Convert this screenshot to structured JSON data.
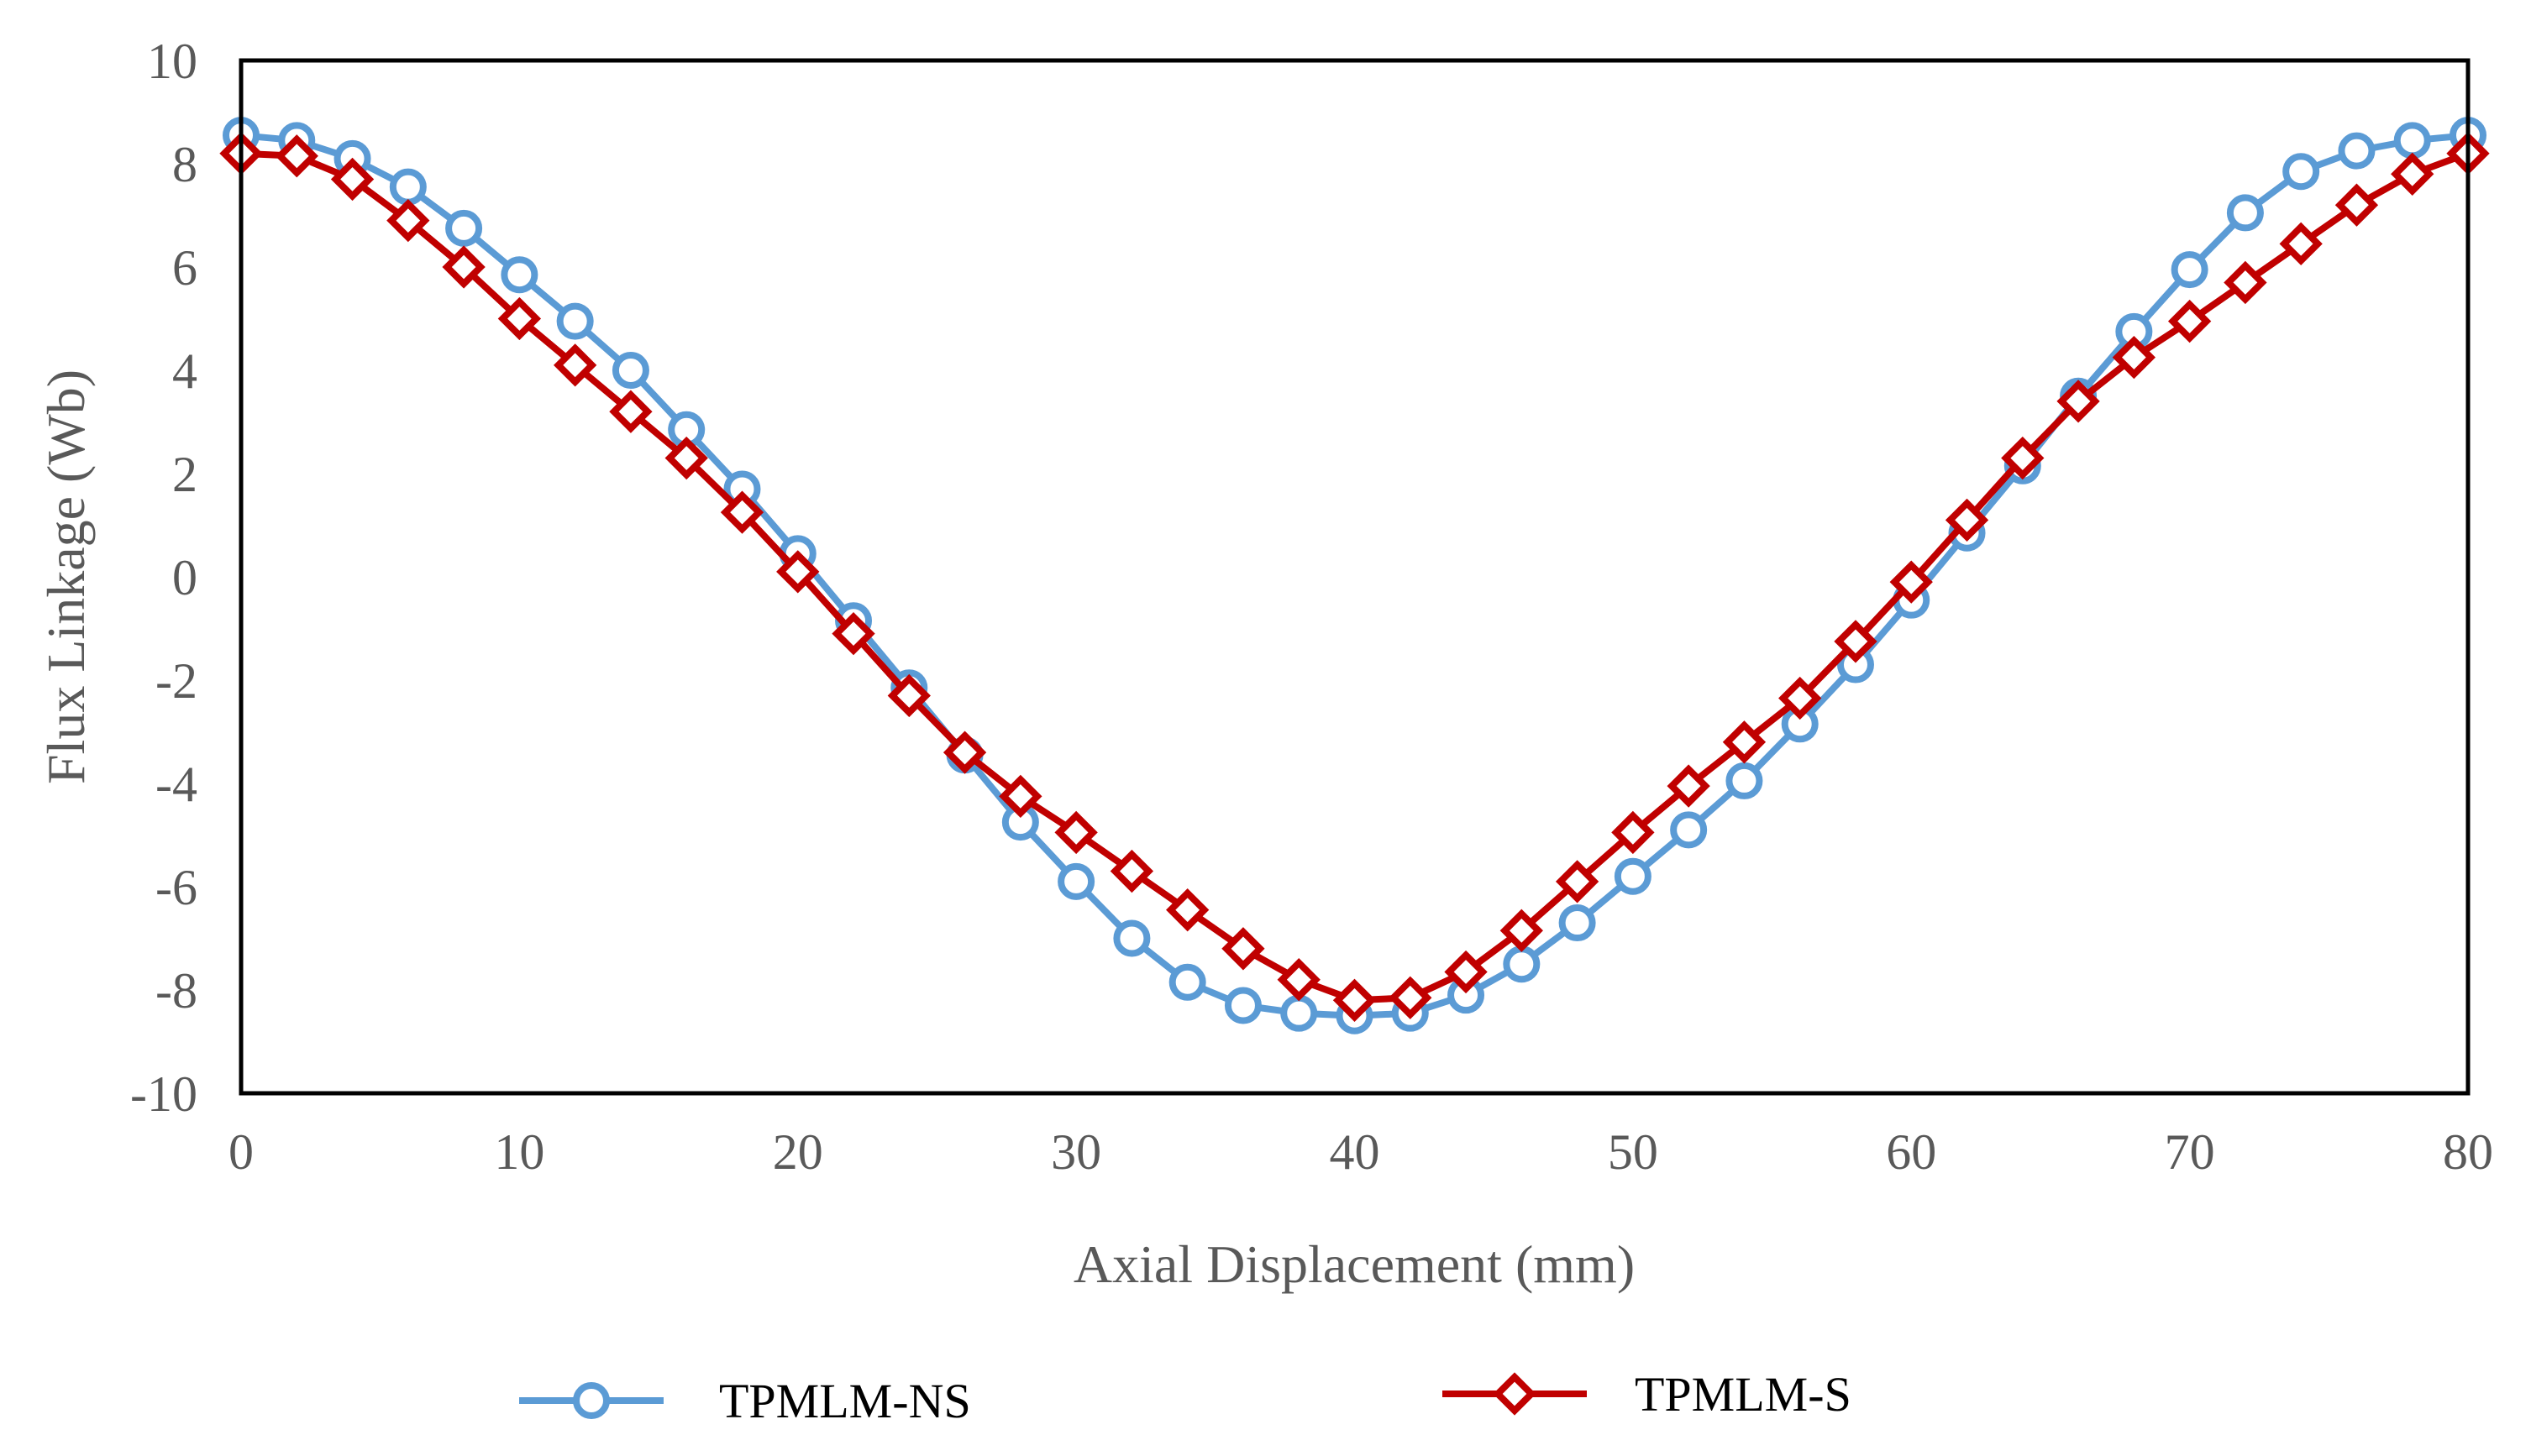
{
  "chart_data": {
    "type": "line",
    "title": "",
    "xlabel": "Axial Displacement (mm)",
    "ylabel": "Flux Linkage (Wb)",
    "xlim": [
      0,
      80
    ],
    "ylim": [
      -10,
      10
    ],
    "x_ticks": [
      "0",
      "10",
      "20",
      "30",
      "40",
      "50",
      "60",
      "70",
      "80"
    ],
    "y_ticks": [
      "10",
      "8",
      "6",
      "4",
      "2",
      "0",
      "-2",
      "-4",
      "-6",
      "-8",
      "-10"
    ],
    "grid": false,
    "legend_position": "bottom",
    "x": [
      0,
      2,
      4,
      6,
      8,
      10,
      12,
      14,
      16,
      18,
      20,
      22,
      24,
      26,
      28,
      30,
      32,
      34,
      36,
      38,
      40,
      42,
      44,
      46,
      48,
      50,
      52,
      54,
      56,
      58,
      60,
      62,
      64,
      66,
      68,
      70,
      72,
      74,
      76,
      78,
      80
    ],
    "series": [
      {
        "name": "TPMLM-NS",
        "color": "#5b9bd5",
        "marker": "circle",
        "values": [
          8.55,
          8.45,
          8.1,
          7.55,
          6.75,
          5.85,
          4.95,
          4.0,
          2.85,
          1.7,
          0.45,
          -0.85,
          -2.15,
          -3.45,
          -4.75,
          -5.9,
          -7.0,
          -7.85,
          -8.3,
          -8.45,
          -8.5,
          -8.45,
          -8.1,
          -7.5,
          -6.7,
          -5.8,
          -4.9,
          -3.95,
          -2.85,
          -1.7,
          -0.45,
          0.85,
          2.15,
          3.5,
          4.75,
          5.95,
          7.05,
          7.85,
          8.25,
          8.45,
          8.55
        ]
      },
      {
        "name": "TPMLM-S",
        "color": "#c00000",
        "marker": "diamond",
        "values": [
          8.2,
          8.15,
          7.7,
          6.9,
          6.0,
          5.0,
          4.1,
          3.2,
          2.3,
          1.25,
          0.1,
          -1.1,
          -2.3,
          -3.4,
          -4.25,
          -4.95,
          -5.7,
          -6.45,
          -7.2,
          -7.8,
          -8.2,
          -8.15,
          -7.65,
          -6.85,
          -5.9,
          -4.95,
          -4.05,
          -3.2,
          -2.35,
          -1.25,
          -0.1,
          1.1,
          2.3,
          3.4,
          4.25,
          4.95,
          5.7,
          6.45,
          7.2,
          7.8,
          8.2
        ]
      }
    ]
  }
}
